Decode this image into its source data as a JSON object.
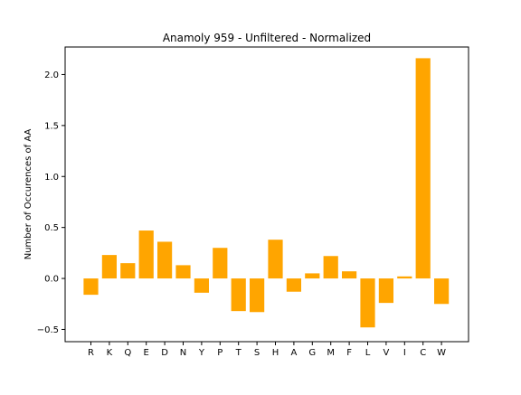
{
  "chart_data": {
    "type": "bar",
    "title": "Anamoly 959 - Unfiltered - Normalized",
    "xlabel": "",
    "ylabel": "Number of Occurences of AA",
    "categories": [
      "R",
      "K",
      "Q",
      "E",
      "D",
      "N",
      "Y",
      "P",
      "T",
      "S",
      "H",
      "A",
      "G",
      "M",
      "F",
      "L",
      "V",
      "I",
      "C",
      "W"
    ],
    "values": [
      -0.16,
      0.23,
      0.15,
      0.47,
      0.36,
      0.13,
      -0.14,
      0.3,
      -0.32,
      -0.33,
      0.38,
      -0.13,
      0.05,
      0.22,
      0.07,
      -0.48,
      -0.24,
      0.02,
      2.16,
      -0.25
    ],
    "ylim": [
      -0.62,
      2.27
    ],
    "yticks": [
      -0.5,
      0.0,
      0.5,
      1.0,
      1.5,
      2.0
    ],
    "ytick_labels": [
      "−0.5",
      "0.0",
      "0.5",
      "1.0",
      "1.5",
      "2.0"
    ],
    "grid": false,
    "bar_color": "#FFA500"
  }
}
